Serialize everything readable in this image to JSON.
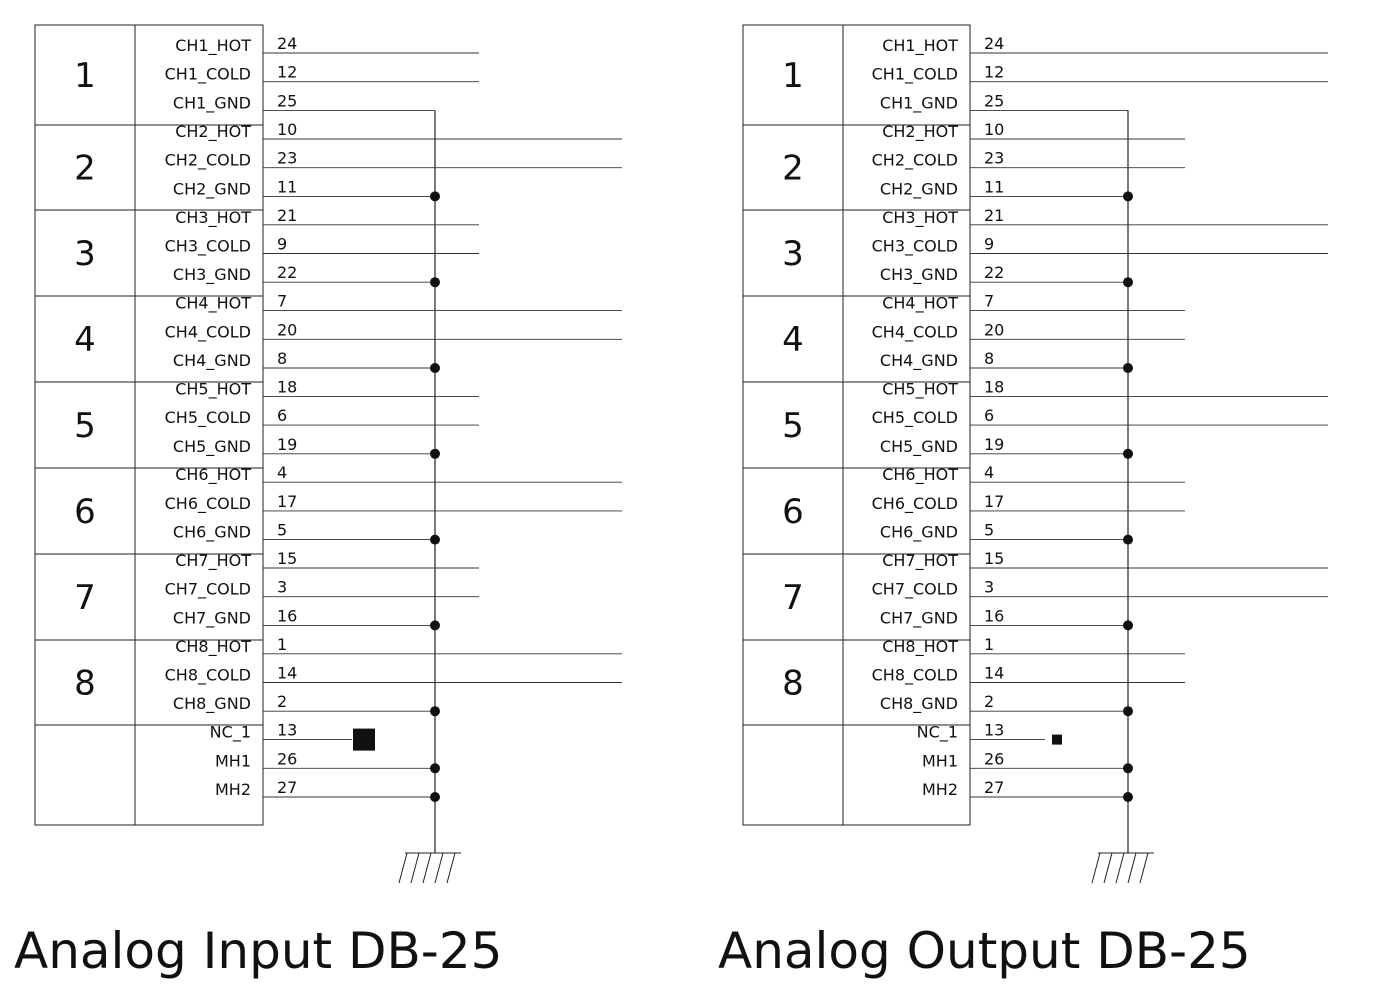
{
  "diagrams": [
    {
      "title": "Analog Input DB-25",
      "groups": [
        {
          "number": "1",
          "signals": [
            {
              "name": "CH1_HOT",
              "pin": "24"
            },
            {
              "name": "CH1_COLD",
              "pin": "12"
            },
            {
              "name": "CH1_GND",
              "pin": "25"
            }
          ]
        },
        {
          "number": "2",
          "signals": [
            {
              "name": "CH2_HOT",
              "pin": "10"
            },
            {
              "name": "CH2_COLD",
              "pin": "23"
            },
            {
              "name": "CH2_GND",
              "pin": "11"
            }
          ]
        },
        {
          "number": "3",
          "signals": [
            {
              "name": "CH3_HOT",
              "pin": "21"
            },
            {
              "name": "CH3_COLD",
              "pin": "9"
            },
            {
              "name": "CH3_GND",
              "pin": "22"
            }
          ]
        },
        {
          "number": "4",
          "signals": [
            {
              "name": "CH4_HOT",
              "pin": "7"
            },
            {
              "name": "CH4_COLD",
              "pin": "20"
            },
            {
              "name": "CH4_GND",
              "pin": "8"
            }
          ]
        },
        {
          "number": "5",
          "signals": [
            {
              "name": "CH5_HOT",
              "pin": "18"
            },
            {
              "name": "CH5_COLD",
              "pin": "6"
            },
            {
              "name": "CH5_GND",
              "pin": "19"
            }
          ]
        },
        {
          "number": "6",
          "signals": [
            {
              "name": "CH6_HOT",
              "pin": "4"
            },
            {
              "name": "CH6_COLD",
              "pin": "17"
            },
            {
              "name": "CH6_GND",
              "pin": "5"
            }
          ]
        },
        {
          "number": "7",
          "signals": [
            {
              "name": "CH7_HOT",
              "pin": "15"
            },
            {
              "name": "CH7_COLD",
              "pin": "3"
            },
            {
              "name": "CH7_GND",
              "pin": "16"
            }
          ]
        },
        {
          "number": "8",
          "signals": [
            {
              "name": "CH8_HOT",
              "pin": "1"
            },
            {
              "name": "CH8_COLD",
              "pin": "14"
            },
            {
              "name": "CH8_GND",
              "pin": "2"
            }
          ]
        },
        {
          "number": "",
          "signals": [
            {
              "name": "NC_1",
              "pin": "13"
            },
            {
              "name": "MH1",
              "pin": "26"
            },
            {
              "name": "MH2",
              "pin": "27"
            }
          ]
        }
      ]
    },
    {
      "title": "Analog Output DB-25",
      "groups": [
        {
          "number": "1",
          "signals": [
            {
              "name": "CH1_HOT",
              "pin": "24"
            },
            {
              "name": "CH1_COLD",
              "pin": "12"
            },
            {
              "name": "CH1_GND",
              "pin": "25"
            }
          ]
        },
        {
          "number": "2",
          "signals": [
            {
              "name": "CH2_HOT",
              "pin": "10"
            },
            {
              "name": "CH2_COLD",
              "pin": "23"
            },
            {
              "name": "CH2_GND",
              "pin": "11"
            }
          ]
        },
        {
          "number": "3",
          "signals": [
            {
              "name": "CH3_HOT",
              "pin": "21"
            },
            {
              "name": "CH3_COLD",
              "pin": "9"
            },
            {
              "name": "CH3_GND",
              "pin": "22"
            }
          ]
        },
        {
          "number": "4",
          "signals": [
            {
              "name": "CH4_HOT",
              "pin": "7"
            },
            {
              "name": "CH4_COLD",
              "pin": "20"
            },
            {
              "name": "CH4_GND",
              "pin": "8"
            }
          ]
        },
        {
          "number": "5",
          "signals": [
            {
              "name": "CH5_HOT",
              "pin": "18"
            },
            {
              "name": "CH5_COLD",
              "pin": "6"
            },
            {
              "name": "CH5_GND",
              "pin": "19"
            }
          ]
        },
        {
          "number": "6",
          "signals": [
            {
              "name": "CH6_HOT",
              "pin": "4"
            },
            {
              "name": "CH6_COLD",
              "pin": "17"
            },
            {
              "name": "CH6_GND",
              "pin": "5"
            }
          ]
        },
        {
          "number": "7",
          "signals": [
            {
              "name": "CH7_HOT",
              "pin": "15"
            },
            {
              "name": "CH7_COLD",
              "pin": "3"
            },
            {
              "name": "CH7_GND",
              "pin": "16"
            }
          ]
        },
        {
          "number": "8",
          "signals": [
            {
              "name": "CH8_HOT",
              "pin": "1"
            },
            {
              "name": "CH8_COLD",
              "pin": "14"
            },
            {
              "name": "CH8_GND",
              "pin": "2"
            }
          ]
        },
        {
          "number": "",
          "signals": [
            {
              "name": "NC_1",
              "pin": "13"
            },
            {
              "name": "MH1",
              "pin": "26"
            },
            {
              "name": "MH2",
              "pin": "27"
            }
          ]
        }
      ]
    }
  ]
}
